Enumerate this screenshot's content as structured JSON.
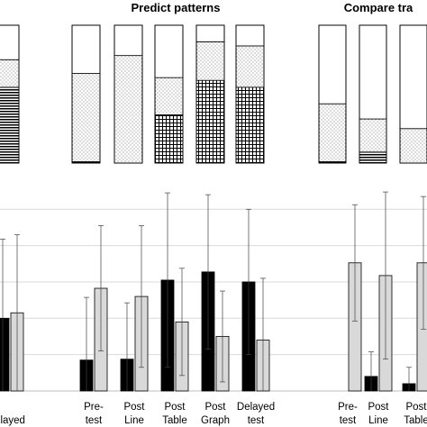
{
  "chart_data": [
    {
      "type": "bar",
      "stacked": true,
      "normalized": true,
      "title": "Predict patterns",
      "grid": false,
      "categories": [
        "Delayed test",
        "Pre-test",
        "Post Line",
        "Post Table",
        "Post Graph",
        "Delayed test"
      ],
      "series": [
        {
          "pattern": "horizontal-lines",
          "values": [
            55,
            1,
            0,
            0,
            0,
            0
          ]
        },
        {
          "pattern": "grid",
          "values": [
            0,
            0,
            0,
            35,
            60,
            55
          ]
        },
        {
          "pattern": "dots",
          "values": [
            20,
            64,
            78,
            27,
            28,
            30
          ]
        },
        {
          "pattern": "white",
          "values": [
            25,
            35,
            22,
            38,
            12,
            15
          ]
        }
      ]
    },
    {
      "type": "bar",
      "stacked": true,
      "normalized": true,
      "title": "Compare tra",
      "grid": false,
      "categories": [
        "Pre-test",
        "Post Line",
        "Post Table"
      ],
      "series": [
        {
          "pattern": "horizontal-lines",
          "values": [
            1,
            8,
            0
          ]
        },
        {
          "pattern": "grid",
          "values": [
            0,
            0,
            0
          ]
        },
        {
          "pattern": "dots",
          "values": [
            42,
            24,
            25
          ]
        },
        {
          "pattern": "white",
          "values": [
            57,
            68,
            75
          ]
        }
      ]
    },
    {
      "type": "bar",
      "grouped": true,
      "error_bars": true,
      "grid": true,
      "ylim": [
        0,
        2.3
      ],
      "categories": [
        {
          "line1": "",
          "line2": "elayed",
          "line3": "test"
        },
        {
          "line1": "Pre-",
          "line2": "test",
          "line3": ""
        },
        {
          "line1": "Post",
          "line2": "Line",
          "line3": ""
        },
        {
          "line1": "Post",
          "line2": "Table",
          "line3": ""
        },
        {
          "line1": "Post",
          "line2": "Graph",
          "line3": ""
        },
        {
          "line1": "Delayed",
          "line2": "test",
          "line3": ""
        },
        {
          "line1": "Pre-",
          "line2": "test",
          "line3": ""
        },
        {
          "line1": "Post",
          "line2": "Line",
          "line3": ""
        },
        {
          "line1": "Post",
          "line2": "Table",
          "line3": ""
        }
      ],
      "series": [
        {
          "color": "#000000",
          "values": [
            0.8,
            0.34,
            0.35,
            1.22,
            1.31,
            1.2,
            0.0,
            0.16,
            0.08
          ],
          "error": [
            0.87,
            0.69,
            0.62,
            0.96,
            0.85,
            0.8,
            0.0,
            0.27,
            0.18
          ]
        },
        {
          "color": "#d9d9d9",
          "values": [
            0.86,
            1.13,
            1.04,
            0.76,
            0.6,
            0.56,
            1.41,
            1.27,
            1.41
          ],
          "error": [
            0.86,
            0.69,
            0.78,
            0.59,
            0.5,
            0.68,
            0.64,
            0.92,
            0.73
          ]
        }
      ]
    }
  ]
}
